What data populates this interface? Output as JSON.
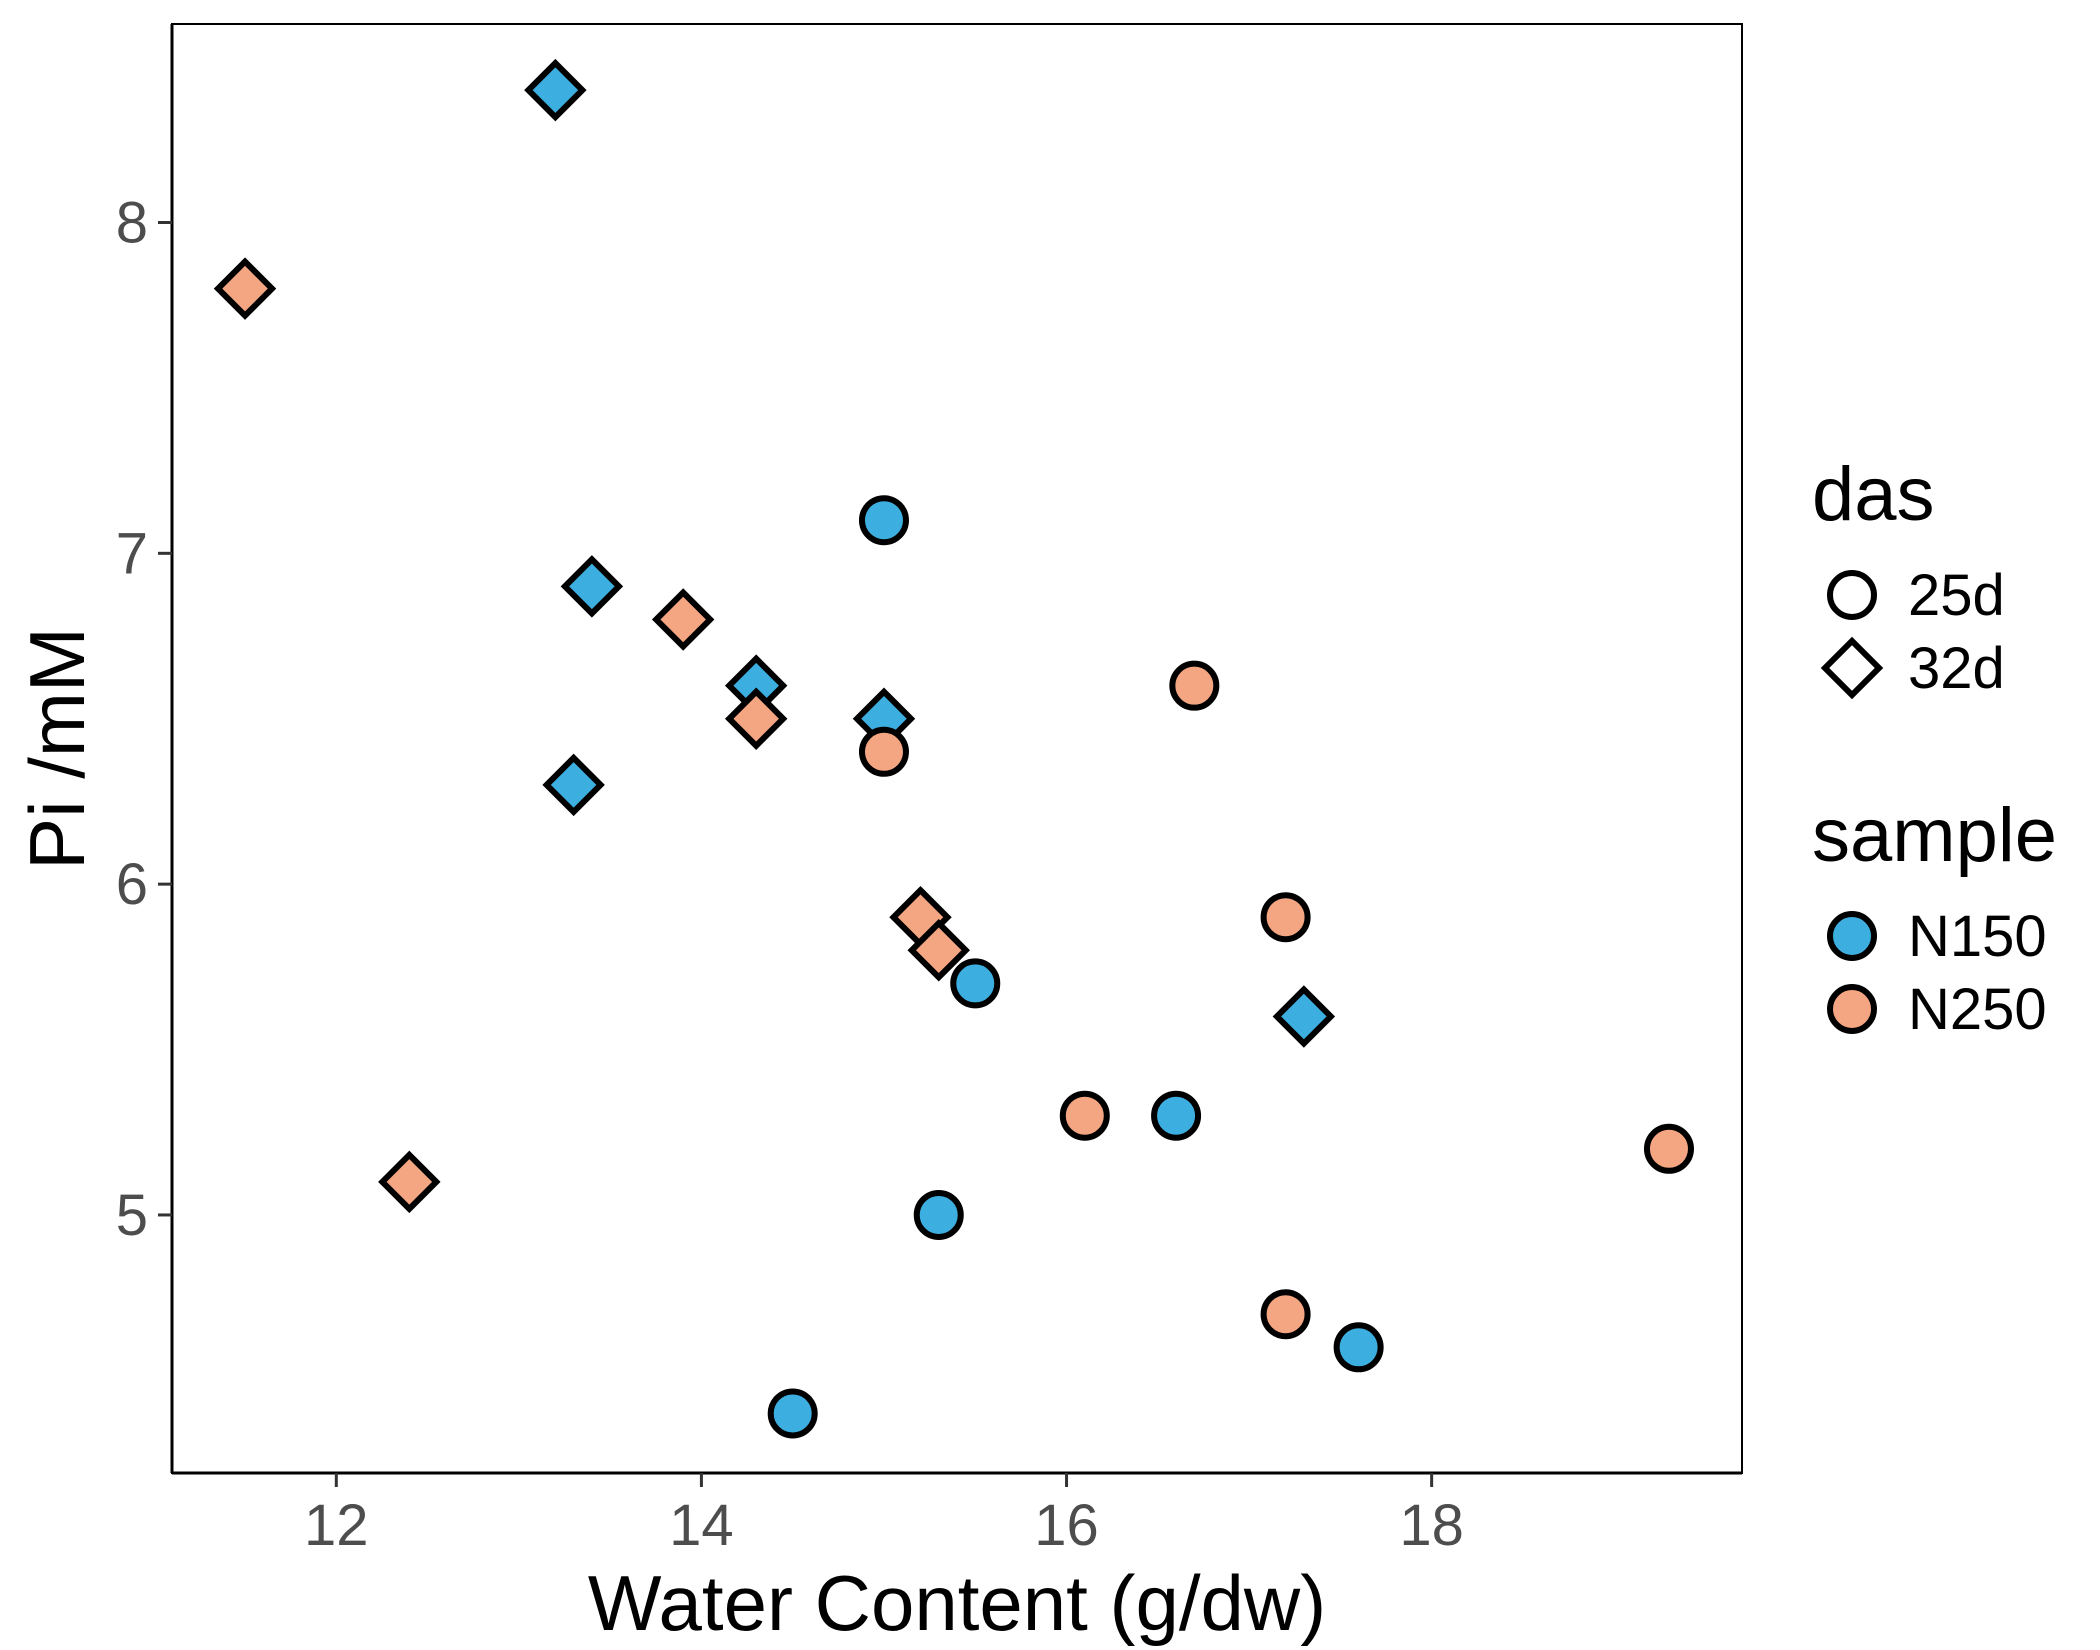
{
  "chart_data": {
    "type": "scatter",
    "xlabel": "Water Content (g/dw)",
    "ylabel": "Pi /mM",
    "xlim": [
      11.1,
      19.7
    ],
    "ylim": [
      4.22,
      8.6
    ],
    "x_ticks": [
      12,
      14,
      16,
      18
    ],
    "y_ticks": [
      5,
      6,
      7,
      8
    ],
    "grid": false,
    "legend_position": "right",
    "legends": [
      {
        "title": "das",
        "entries": [
          {
            "label": "25d",
            "shape": "circle"
          },
          {
            "label": "32d",
            "shape": "diamond"
          }
        ]
      },
      {
        "title": "sample",
        "entries": [
          {
            "label": "N150",
            "color": "#3daee0"
          },
          {
            "label": "N250",
            "color": "#f4a582"
          }
        ]
      }
    ],
    "series": [
      {
        "sample": "N150",
        "das": "25d",
        "color": "#3daee0",
        "shape": "circle",
        "points": [
          [
            15.0,
            7.1
          ],
          [
            15.5,
            5.7
          ],
          [
            15.3,
            5.0
          ],
          [
            14.5,
            4.4
          ],
          [
            16.6,
            5.3
          ],
          [
            17.6,
            4.6
          ]
        ]
      },
      {
        "sample": "N150",
        "das": "32d",
        "color": "#3daee0",
        "shape": "diamond",
        "points": [
          [
            13.2,
            8.4
          ],
          [
            13.4,
            6.9
          ],
          [
            13.3,
            6.3
          ],
          [
            14.3,
            6.6
          ],
          [
            15.0,
            6.5
          ],
          [
            17.3,
            5.6
          ]
        ]
      },
      {
        "sample": "N250",
        "das": "25d",
        "color": "#f4a582",
        "shape": "circle",
        "points": [
          [
            15.0,
            6.4
          ],
          [
            16.7,
            6.6
          ],
          [
            17.2,
            5.9
          ],
          [
            16.1,
            5.3
          ],
          [
            17.2,
            4.7
          ],
          [
            19.3,
            5.2
          ]
        ]
      },
      {
        "sample": "N250",
        "das": "32d",
        "color": "#f4a582",
        "shape": "diamond",
        "points": [
          [
            11.5,
            7.8
          ],
          [
            12.4,
            5.1
          ],
          [
            13.9,
            6.8
          ],
          [
            14.3,
            6.5
          ],
          [
            15.2,
            5.9
          ],
          [
            15.3,
            5.8
          ]
        ]
      }
    ]
  }
}
